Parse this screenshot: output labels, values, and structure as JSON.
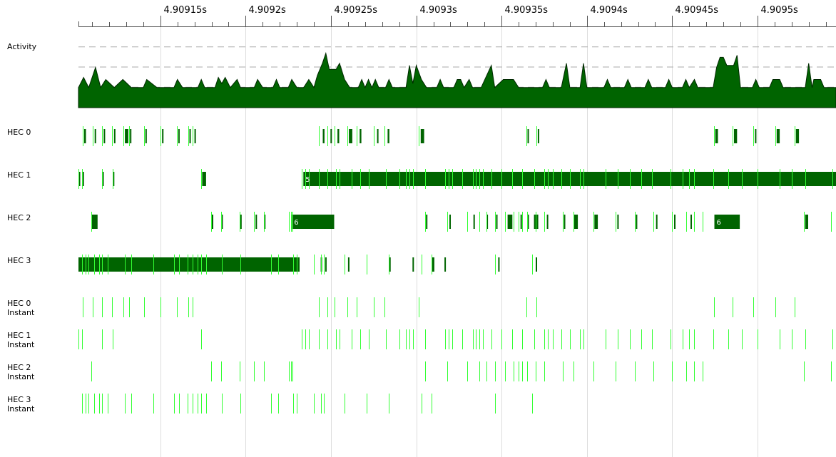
{
  "colors": {
    "activity_fill": "#006400",
    "bar_fill": "#006400",
    "marker": "#33ff33",
    "grid": "#dddddd",
    "dash": "#aaaaaa",
    "axis": "#555555"
  },
  "time_axis": {
    "unit": "s",
    "start": 4.909102,
    "end": 4.909546,
    "ticks": [
      {
        "t": 4.90915,
        "label": "4.90915s"
      },
      {
        "t": 4.9092,
        "label": "4.9092s"
      },
      {
        "t": 4.90925,
        "label": "4.90925s"
      },
      {
        "t": 4.9093,
        "label": "4.9093s"
      },
      {
        "t": 4.90935,
        "label": "4.90935s"
      },
      {
        "t": 4.9094,
        "label": "4.9094s"
      },
      {
        "t": 4.90945,
        "label": "4.90945s"
      },
      {
        "t": 4.9095,
        "label": "4.9095s"
      }
    ],
    "minor_step": 1e-05
  },
  "activity": {
    "label": "Activity",
    "levels": 4,
    "profile": [
      [
        4.909102,
        1.0
      ],
      [
        4.909105,
        1.5
      ],
      [
        4.909108,
        1.0
      ],
      [
        4.909112,
        2.0
      ],
      [
        4.909115,
        1.0
      ],
      [
        4.909118,
        1.4
      ],
      [
        4.909123,
        1.0
      ],
      [
        4.909128,
        1.4
      ],
      [
        4.909133,
        1.0
      ],
      [
        4.90914,
        1.0
      ],
      [
        4.909142,
        1.4
      ],
      [
        4.909148,
        1.0
      ],
      [
        4.909158,
        1.0
      ],
      [
        4.90916,
        1.4
      ],
      [
        4.909163,
        1.0
      ],
      [
        4.909172,
        1.0
      ],
      [
        4.909174,
        1.4
      ],
      [
        4.909176,
        1.0
      ],
      [
        4.909182,
        1.0
      ],
      [
        4.909184,
        1.5
      ],
      [
        4.909186,
        1.2
      ],
      [
        4.909188,
        1.5
      ],
      [
        4.909191,
        1.0
      ],
      [
        4.909195,
        1.4
      ],
      [
        4.909197,
        1.0
      ],
      [
        4.909205,
        1.0
      ],
      [
        4.909207,
        1.4
      ],
      [
        4.90921,
        1.0
      ],
      [
        4.909216,
        1.0
      ],
      [
        4.909218,
        1.4
      ],
      [
        4.90922,
        1.0
      ],
      [
        4.909225,
        1.0
      ],
      [
        4.909227,
        1.4
      ],
      [
        4.90923,
        1.0
      ],
      [
        4.909234,
        1.0
      ],
      [
        4.909237,
        1.4
      ],
      [
        4.90924,
        1.0
      ],
      [
        4.909242,
        1.6
      ],
      [
        4.909245,
        2.2
      ],
      [
        4.909247,
        2.7
      ],
      [
        4.909249,
        1.9
      ],
      [
        4.909253,
        1.9
      ],
      [
        4.909255,
        2.2
      ],
      [
        4.909258,
        1.4
      ],
      [
        4.909261,
        1.0
      ],
      [
        4.909266,
        1.0
      ],
      [
        4.909268,
        1.4
      ],
      [
        4.90927,
        1.0
      ],
      [
        4.909272,
        1.4
      ],
      [
        4.909274,
        1.0
      ],
      [
        4.909276,
        1.4
      ],
      [
        4.909278,
        1.0
      ],
      [
        4.909282,
        1.0
      ],
      [
        4.909284,
        1.4
      ],
      [
        4.909286,
        1.0
      ],
      [
        4.909294,
        1.0
      ],
      [
        4.909296,
        2.1
      ],
      [
        4.909298,
        1.2
      ],
      [
        4.9093,
        2.1
      ],
      [
        4.909303,
        1.4
      ],
      [
        4.909306,
        1.0
      ],
      [
        4.909312,
        1.0
      ],
      [
        4.909314,
        1.4
      ],
      [
        4.909316,
        1.0
      ],
      [
        4.909322,
        1.0
      ],
      [
        4.909324,
        1.4
      ],
      [
        4.909326,
        1.4
      ],
      [
        4.909328,
        1.0
      ],
      [
        4.909331,
        1.4
      ],
      [
        4.909333,
        1.0
      ],
      [
        4.909338,
        1.0
      ],
      [
        4.909344,
        2.1
      ],
      [
        4.909346,
        1.0
      ],
      [
        4.909351,
        1.4
      ],
      [
        4.909357,
        1.4
      ],
      [
        4.90936,
        1.0
      ],
      [
        4.909374,
        1.0
      ],
      [
        4.909376,
        1.4
      ],
      [
        4.909378,
        1.0
      ],
      [
        4.909385,
        1.0
      ],
      [
        4.909388,
        2.2
      ],
      [
        4.90939,
        1.0
      ],
      [
        4.909396,
        1.0
      ],
      [
        4.909398,
        2.2
      ],
      [
        4.9094,
        1.0
      ],
      [
        4.90941,
        1.0
      ],
      [
        4.909412,
        1.4
      ],
      [
        4.909414,
        1.0
      ],
      [
        4.909422,
        1.0
      ],
      [
        4.909424,
        1.4
      ],
      [
        4.909426,
        1.0
      ],
      [
        4.909434,
        1.0
      ],
      [
        4.909436,
        1.4
      ],
      [
        4.909438,
        1.0
      ],
      [
        4.909446,
        1.0
      ],
      [
        4.909448,
        1.4
      ],
      [
        4.90945,
        1.0
      ],
      [
        4.909456,
        1.0
      ],
      [
        4.909458,
        1.4
      ],
      [
        4.90946,
        1.0
      ],
      [
        4.909463,
        1.4
      ],
      [
        4.909465,
        1.0
      ],
      [
        4.909474,
        1.0
      ],
      [
        4.909476,
        2.0
      ],
      [
        4.909478,
        2.5
      ],
      [
        4.90948,
        2.5
      ],
      [
        4.909482,
        2.1
      ],
      [
        4.909486,
        2.1
      ],
      [
        4.909488,
        2.6
      ],
      [
        4.90949,
        1.0
      ],
      [
        4.909497,
        1.0
      ],
      [
        4.909499,
        1.4
      ],
      [
        4.909501,
        1.0
      ],
      [
        4.909507,
        1.0
      ],
      [
        4.909509,
        1.4
      ],
      [
        4.909513,
        1.4
      ],
      [
        4.909515,
        1.0
      ],
      [
        4.909528,
        1.0
      ],
      [
        4.90953,
        2.2
      ],
      [
        4.909532,
        1.0
      ],
      [
        4.909533,
        1.4
      ],
      [
        4.909537,
        1.4
      ],
      [
        4.909539,
        1.0
      ],
      [
        4.909546,
        1.0
      ]
    ]
  },
  "rows": [
    {
      "id": "hec0",
      "label": "HEC 0",
      "bars": [
        [
          4.9091053,
          4.9091064
        ],
        [
          4.9091115,
          4.9091123
        ],
        [
          4.9091168,
          4.9091176
        ],
        [
          4.9091228,
          4.9091236
        ],
        [
          4.9091292,
          4.9091312
        ],
        [
          4.9091322,
          4.909133
        ],
        [
          4.9091412,
          4.909142
        ],
        [
          4.909151,
          4.9091518
        ],
        [
          4.9091605,
          4.9091612
        ],
        [
          4.909167,
          4.9091678
        ],
        [
          4.90917,
          4.9091708
        ],
        [
          4.9092452,
          4.9092462
        ],
        [
          4.9092497,
          4.9092505
        ],
        [
          4.9092538,
          4.9092548
        ],
        [
          4.9092605,
          4.9092625
        ],
        [
          4.9092668,
          4.9092678
        ],
        [
          4.909277,
          4.9092778
        ],
        [
          4.9092832,
          4.9092842
        ],
        [
          4.9093026,
          4.9093046
        ],
        [
          4.9093652,
          4.909366
        ],
        [
          4.9093712,
          4.909372
        ],
        [
          4.9094752,
          4.9094768
        ],
        [
          4.9094862,
          4.909488
        ],
        [
          4.9094985,
          4.9094993
        ],
        [
          4.9095112,
          4.909513
        ],
        [
          4.9095225,
          4.9095243
        ]
      ],
      "markers": [
        4.9091045,
        4.9091105,
        4.9091158,
        4.9091215,
        4.9091285,
        4.9091315,
        4.9091405,
        4.90915,
        4.9091598,
        4.9091662,
        4.909169,
        4.909243,
        4.909248,
        4.909252,
        4.9092595,
        4.909265,
        4.909275,
        4.9092815,
        4.9093015,
        4.9093645,
        4.9093705,
        4.9094745,
        4.9094855,
        4.9094975,
        4.9095105,
        4.9095218
      ]
    },
    {
      "id": "hec1",
      "label": "HEC 1",
      "bars": [
        [
          4.9091022,
          4.909103
        ],
        [
          4.9091044,
          4.9091052
        ],
        [
          4.909116,
          4.9091168
        ],
        [
          4.9091222,
          4.909123
        ],
        [
          4.9091745,
          4.9091768
        ],
        [
          4.9092338,
          4.909546
        ]
      ],
      "bar_labels": [
        {
          "bar": 5,
          "text": "5"
        }
      ],
      "markers": [
        4.909102,
        4.9091042,
        4.9091158,
        4.909122,
        4.909174,
        4.909233,
        4.909235,
        4.909237,
        4.909243,
        4.909248,
        4.909253,
        4.909255,
        4.909262,
        4.909267,
        4.909272,
        4.909282,
        4.90929,
        4.909294,
        4.909296,
        4.909298,
        4.909305,
        4.909317,
        4.909319,
        4.909321,
        4.909327,
        4.909333,
        4.909335,
        4.909337,
        4.909339,
        4.909344,
        4.90935,
        4.909356,
        4.909362,
        4.909369,
        4.909375,
        4.909377,
        4.90938,
        4.909385,
        4.90939,
        4.909396,
        4.909398,
        4.909411,
        4.909418,
        4.909425,
        4.909432,
        4.909438,
        4.909449,
        4.909456,
        4.90946,
        4.909463,
        4.909474,
        4.909483,
        4.909491,
        4.9095,
        4.909513,
        4.90952,
        4.909528,
        4.909544
      ]
    },
    {
      "id": "hec2",
      "label": "HEC 2",
      "bars": [
        [
          4.9091099,
          4.9091132
        ],
        [
          4.9091802,
          4.909181
        ],
        [
          4.9091858,
          4.9091866
        ],
        [
          4.9091968,
          4.9091976
        ],
        [
          4.9092058,
          4.9092066
        ],
        [
          4.9092108,
          4.9092116
        ],
        [
          4.9092271,
          4.9092519
        ],
        [
          4.9093057,
          4.9093065
        ],
        [
          4.9093194,
          4.9093202
        ],
        [
          4.9093335,
          4.9093343
        ],
        [
          4.9093412,
          4.909342
        ],
        [
          4.9093468,
          4.9093476
        ],
        [
          4.9093535,
          4.9093563
        ],
        [
          4.9093611,
          4.9093619
        ],
        [
          4.909365,
          4.909366
        ],
        [
          4.909369,
          4.9093715
        ],
        [
          4.9093765,
          4.9093773
        ],
        [
          4.9093865,
          4.9093873
        ],
        [
          4.9093925,
          4.9093947
        ],
        [
          4.9094044,
          4.9094064
        ],
        [
          4.9094178,
          4.9094186
        ],
        [
          4.9094287,
          4.9094295
        ],
        [
          4.9094405,
          4.9094413
        ],
        [
          4.9094511,
          4.9094519
        ],
        [
          4.9094607,
          4.9094615
        ],
        [
          4.9094747,
          4.9094896
        ],
        [
          4.9095279,
          4.9095297
        ]
      ],
      "bar_labels": [
        {
          "bar": 6,
          "text": "6"
        },
        {
          "bar": 25,
          "text": "6"
        }
      ],
      "markers": [
        4.9091095,
        4.9091798,
        4.9091855,
        4.9091965,
        4.909205,
        4.9092105,
        4.9092255,
        4.9092265,
        4.9092275,
        4.909305,
        4.909318,
        4.90933,
        4.909337,
        4.909341,
        4.909346,
        4.909352,
        4.909357,
        4.90936,
        4.909362,
        4.909365,
        4.90937,
        4.909375,
        4.909386,
        4.909392,
        4.909404,
        4.909417,
        4.909428,
        4.909439,
        4.90945,
        4.909458,
        4.909463,
        4.909468,
        4.909527,
        4.909543
      ]
    },
    {
      "id": "hec3",
      "label": "HEC 3",
      "bars": [
        [
          4.909102,
          4.9092316
        ],
        [
          4.909244,
          4.9092448
        ],
        [
          4.9092466,
          4.9092474
        ],
        [
          4.90926,
          4.9092608
        ],
        [
          4.909284,
          4.909285
        ],
        [
          4.9092978,
          4.9092986
        ],
        [
          4.909309,
          4.9093106
        ],
        [
          4.9093165,
          4.9093173
        ],
        [
          4.909348,
          4.9093488
        ],
        [
          4.90937,
          4.9093708
        ]
      ],
      "markers": [
        4.909104,
        4.909106,
        4.909108,
        4.909111,
        4.909114,
        4.909116,
        4.909119,
        4.909129,
        4.909133,
        4.909146,
        4.909158,
        4.909161,
        4.909166,
        4.909169,
        4.909172,
        4.909174,
        4.909177,
        4.909186,
        4.909197,
        4.909215,
        4.909219,
        4.909228,
        4.90923,
        4.90924,
        4.909244,
        4.909246,
        4.909258,
        4.909271,
        4.909284,
        4.909303,
        4.909309,
        4.909346,
        4.909368
      ]
    },
    {
      "id": "hec0-instant",
      "label": "HEC 0",
      "sublabel": "Instant",
      "markers": [
        4.9091045,
        4.9091105,
        4.9091158,
        4.9091215,
        4.9091285,
        4.9091315,
        4.9091405,
        4.90915,
        4.9091598,
        4.9091662,
        4.909169,
        4.909243,
        4.909248,
        4.909252,
        4.9092595,
        4.909265,
        4.909275,
        4.9092815,
        4.9093015,
        4.9093645,
        4.9093705,
        4.9094745,
        4.9094855,
        4.9094975,
        4.9095105,
        4.9095218
      ]
    },
    {
      "id": "hec1-instant",
      "label": "HEC 1",
      "sublabel": "Instant",
      "markers": [
        4.909102,
        4.9091042,
        4.9091158,
        4.909122,
        4.909174,
        4.909233,
        4.909235,
        4.909237,
        4.909243,
        4.909248,
        4.909253,
        4.909255,
        4.909262,
        4.909267,
        4.909272,
        4.909282,
        4.90929,
        4.909294,
        4.909296,
        4.909298,
        4.909305,
        4.909317,
        4.909319,
        4.909321,
        4.909327,
        4.909333,
        4.909335,
        4.909337,
        4.909339,
        4.909344,
        4.90935,
        4.909356,
        4.909362,
        4.909369,
        4.909375,
        4.909377,
        4.90938,
        4.909385,
        4.90939,
        4.909396,
        4.909398,
        4.909411,
        4.909418,
        4.909425,
        4.909432,
        4.909438,
        4.909449,
        4.909456,
        4.90946,
        4.909463,
        4.909474,
        4.909483,
        4.909491,
        4.9095,
        4.909513,
        4.90952,
        4.909528,
        4.909544
      ]
    },
    {
      "id": "hec2-instant",
      "label": "HEC 2",
      "sublabel": "Instant",
      "markers": [
        4.9091095,
        4.9091798,
        4.9091855,
        4.9091965,
        4.909205,
        4.9092105,
        4.9092255,
        4.9092265,
        4.9092275,
        4.909305,
        4.909318,
        4.90933,
        4.909337,
        4.909341,
        4.909346,
        4.909352,
        4.909357,
        4.90936,
        4.909362,
        4.909365,
        4.90937,
        4.909375,
        4.909386,
        4.909392,
        4.909404,
        4.909417,
        4.909428,
        4.909439,
        4.90945,
        4.909458,
        4.909463,
        4.909468,
        4.909527,
        4.909543
      ]
    },
    {
      "id": "hec3-instant",
      "label": "HEC 3",
      "sublabel": "Instant",
      "markers": [
        4.909104,
        4.909106,
        4.909108,
        4.909111,
        4.909114,
        4.909116,
        4.909119,
        4.909129,
        4.909133,
        4.909146,
        4.909158,
        4.909161,
        4.909166,
        4.909169,
        4.909172,
        4.909174,
        4.909177,
        4.909186,
        4.909197,
        4.909215,
        4.909219,
        4.909228,
        4.90923,
        4.90924,
        4.909244,
        4.909246,
        4.909258,
        4.909271,
        4.909284,
        4.909303,
        4.909309,
        4.909346,
        4.909368
      ]
    }
  ]
}
